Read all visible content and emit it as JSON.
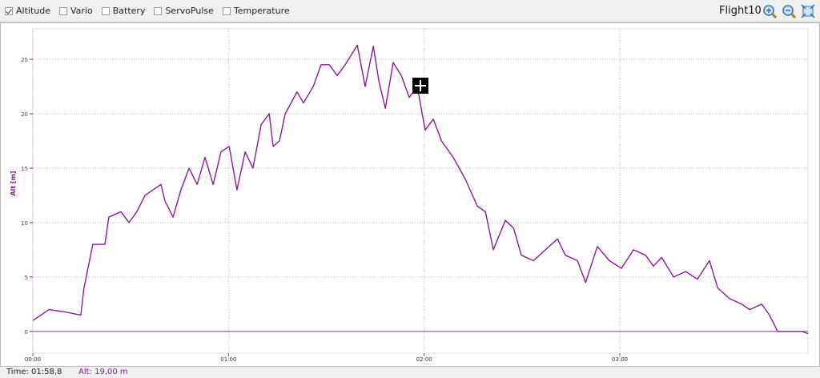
{
  "toolbar": {
    "checkboxes": [
      {
        "label": "Altitude",
        "checked": true
      },
      {
        "label": "Vario",
        "checked": false
      },
      {
        "label": "Battery",
        "checked": false
      },
      {
        "label": "ServoPulse",
        "checked": false
      },
      {
        "label": "Temperature",
        "checked": false
      }
    ],
    "flight": "Flight10"
  },
  "chart_data": {
    "type": "line",
    "y_label": "Alt [m]",
    "color": "#8b1a9b",
    "grid": true,
    "xlim": [
      0,
      237.7
    ],
    "xticks": [
      {
        "value": 0,
        "label": "00:00"
      },
      {
        "value": 60,
        "label": "01:00"
      },
      {
        "value": 120,
        "label": "02:00"
      },
      {
        "value": 180,
        "label": "03:00"
      }
    ],
    "ylim": [
      -2,
      27.8
    ],
    "yticks": [
      0,
      5,
      10,
      15,
      20,
      25
    ],
    "x": [
      0,
      2.5,
      4.9,
      9.8,
      14.7,
      15.7,
      18.4,
      22.1,
      23.3,
      27.0,
      29.5,
      31.9,
      34.4,
      39.3,
      40.5,
      43.0,
      45.4,
      47.9,
      50.4,
      52.8,
      55.3,
      57.7,
      60.2,
      62.6,
      65.1,
      67.5,
      70.0,
      72.5,
      73.7,
      75.6,
      77.4,
      81.0,
      83.0,
      86.0,
      88.4,
      90.9,
      93.3,
      95.8,
      99.5,
      101.9,
      104.4,
      106.1,
      108.1,
      110.5,
      113.0,
      115.4,
      117.9,
      120.3,
      122.8,
      125.3,
      128.9,
      132.6,
      136.3,
      138.8,
      141.2,
      144.9,
      147.4,
      149.8,
      153.5,
      157.2,
      160.9,
      163.3,
      167.0,
      169.5,
      173.1,
      176.8,
      180.5,
      184.2,
      187.9,
      190.3,
      192.8,
      196.5,
      200.2,
      203.8,
      207.5,
      210.0,
      213.7,
      217.4,
      219.8,
      223.5,
      225.9,
      228.4,
      232.1,
      235.8,
      237.7
    ],
    "values": [
      1,
      1.5,
      2,
      1.8,
      1.5,
      4,
      8,
      8,
      10.5,
      11,
      10,
      11,
      12.5,
      13.5,
      12,
      10.5,
      13,
      15,
      13.5,
      16,
      13.5,
      16.5,
      17,
      13,
      16.5,
      15,
      19,
      20,
      17,
      17.5,
      20,
      22,
      21,
      22.5,
      24.5,
      24.5,
      23.5,
      24.5,
      26.3,
      22.5,
      26.2,
      23,
      20.5,
      24.7,
      23.5,
      21.5,
      22.5,
      18.5,
      19.5,
      17.5,
      16,
      14,
      11.5,
      11,
      7.5,
      10.2,
      9.5,
      7,
      6.5,
      7.5,
      8.5,
      7,
      6.5,
      4.5,
      7.8,
      6.5,
      5.8,
      7.5,
      7,
      6,
      6.8,
      5,
      5.5,
      4.8,
      6.5,
      4,
      3,
      2.5,
      2,
      2.5,
      1.5,
      0,
      0,
      0,
      -0.2
    ]
  },
  "status": {
    "time": "Time: 01:58,8",
    "alt": "Alt: 19,00 m"
  }
}
